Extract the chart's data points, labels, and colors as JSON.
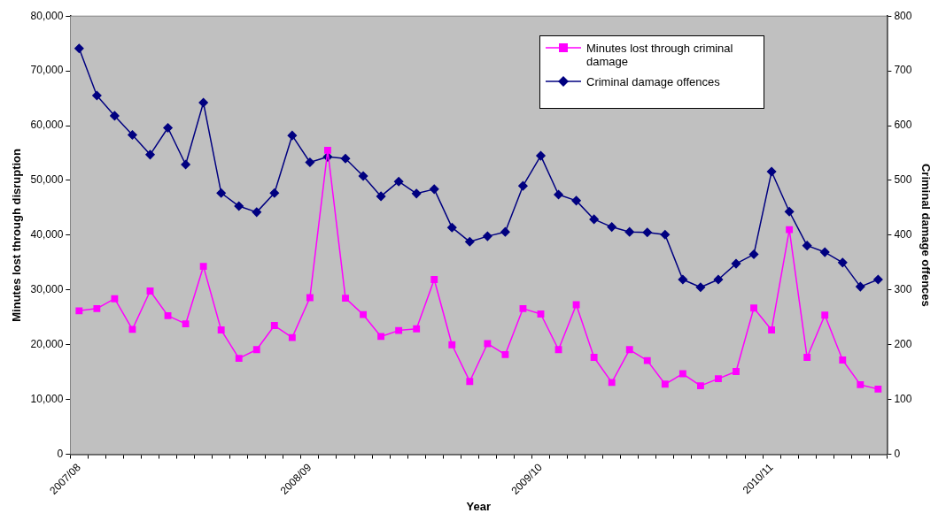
{
  "chart_data": {
    "type": "line",
    "xlabel": "Year",
    "ylabel": "Minutes lost through disruption",
    "y2label": "Criminal damage offences",
    "categories": [
      "2007/08",
      null,
      null,
      null,
      null,
      null,
      null,
      null,
      null,
      null,
      null,
      null,
      null,
      "2008/09",
      null,
      null,
      null,
      null,
      null,
      null,
      null,
      null,
      null,
      null,
      null,
      null,
      "2009/10",
      null,
      null,
      null,
      null,
      null,
      null,
      null,
      null,
      null,
      null,
      null,
      null,
      "2010/11",
      null,
      null,
      null,
      null,
      null,
      null
    ],
    "series": [
      {
        "name": "Minutes lost through criminal damage",
        "color": "#ff00ff",
        "marker": "square",
        "values": [
          26200,
          26600,
          28400,
          22800,
          29800,
          25300,
          23800,
          34300,
          22700,
          17500,
          19100,
          23500,
          21300,
          28600,
          55500,
          28500,
          25500,
          21500,
          22600,
          22900,
          31900,
          20000,
          13300,
          20200,
          18200,
          26600,
          25600,
          19100,
          27300,
          17700,
          13100,
          19100,
          17100,
          12800,
          14700,
          12500,
          13800,
          15100,
          26700,
          22700,
          41000,
          17700,
          25400,
          17200,
          12700,
          11900
        ]
      },
      {
        "name": "Criminal damage offences",
        "color": "#000080",
        "marker": "diamond",
        "axis": "y2",
        "values": [
          741,
          655,
          618,
          583,
          547,
          596,
          529,
          642,
          477,
          453,
          442,
          477,
          582,
          533,
          543,
          540,
          508,
          471,
          498,
          476,
          484,
          414,
          388,
          398,
          406,
          490,
          545,
          474,
          463,
          429,
          415,
          406,
          405,
          401,
          319,
          305,
          319,
          348,
          365,
          516,
          443,
          381,
          369,
          350,
          306,
          319
        ]
      }
    ],
    "ylim": [
      0,
      80000
    ],
    "yticks": [
      0,
      {
        "value": 10000,
        "label": "10,000"
      },
      {
        "value": 20000,
        "label": "20,000"
      },
      {
        "value": 30000,
        "label": "30,000"
      },
      {
        "value": 40000,
        "label": "40,000"
      },
      {
        "value": 50000,
        "label": "50,000"
      },
      {
        "value": 60000,
        "label": "60,000"
      },
      {
        "value": 70000,
        "label": "70,000"
      },
      {
        "value": 80000,
        "label": "80,000"
      }
    ],
    "y2lim": [
      0,
      800
    ],
    "y2ticks": [
      0,
      100,
      200,
      300,
      400,
      500,
      600,
      700,
      800
    ],
    "grid": false,
    "legend": "top right"
  }
}
